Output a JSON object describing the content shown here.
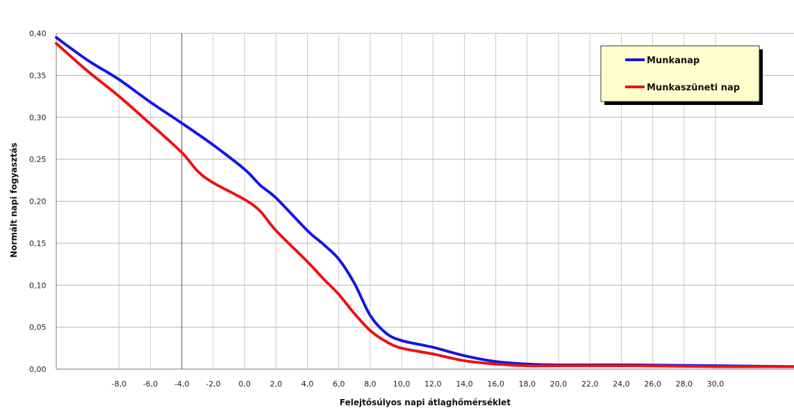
{
  "chart_data": {
    "type": "line",
    "title": "",
    "xlabel": "Felejtősúlyos napi átlaghőmérséklet",
    "ylabel": "Normált napi fogyasztás",
    "xlim": [
      -12.0,
      35.0
    ],
    "ylim": [
      0.0,
      0.4
    ],
    "x_ticks": [
      -8.0,
      -6.0,
      -4.0,
      -2.0,
      0.0,
      2.0,
      4.0,
      6.0,
      8.0,
      10.0,
      12.0,
      14.0,
      16.0,
      18.0,
      20.0,
      22.0,
      24.0,
      26.0,
      28.0,
      30.0
    ],
    "x_tick_labels": [
      "-8,0",
      "-6,0",
      "-4,0",
      "-2,0",
      "0,0",
      "2,0",
      "4,0",
      "6,0",
      "8,0",
      "10,0",
      "12,0",
      "14,0",
      "16,0",
      "18,0",
      "20,0",
      "22,0",
      "24,0",
      "26,0",
      "28,0",
      "30,0"
    ],
    "y_ticks": [
      0.0,
      0.05,
      0.1,
      0.15,
      0.2,
      0.25,
      0.3,
      0.35,
      0.4
    ],
    "y_tick_labels": [
      "0,00",
      "0,05",
      "0,10",
      "0,15",
      "0,20",
      "0,25",
      "0,30",
      "0,35",
      "0,40"
    ],
    "grid": true,
    "legend_position": "top-right",
    "series": [
      {
        "name": "Munkanap",
        "color": "#1414e6",
        "x": [
          -12.0,
          -10.0,
          -8.0,
          -6.0,
          -4.0,
          -2.0,
          0.0,
          1.0,
          2.0,
          4.0,
          5.0,
          6.0,
          7.0,
          8.0,
          9.0,
          10.0,
          12.0,
          14.0,
          16.0,
          18.0,
          20.0,
          25.0,
          30.0,
          35.0
        ],
        "y": [
          0.395,
          0.368,
          0.345,
          0.318,
          0.293,
          0.267,
          0.238,
          0.219,
          0.204,
          0.165,
          0.149,
          0.131,
          0.102,
          0.064,
          0.043,
          0.034,
          0.026,
          0.016,
          0.009,
          0.006,
          0.005,
          0.005,
          0.004,
          0.003
        ]
      },
      {
        "name": "Munkaszüneti nap",
        "color": "#ee1111",
        "x": [
          -12.0,
          -10.0,
          -8.0,
          -6.0,
          -4.0,
          -3.0,
          -2.0,
          0.0,
          1.0,
          2.0,
          4.0,
          5.0,
          6.0,
          7.0,
          8.0,
          9.0,
          10.0,
          12.0,
          14.0,
          16.0,
          18.0,
          20.0,
          25.0,
          30.0,
          35.0
        ],
        "y": [
          0.388,
          0.355,
          0.325,
          0.292,
          0.258,
          0.236,
          0.222,
          0.202,
          0.188,
          0.165,
          0.128,
          0.108,
          0.089,
          0.066,
          0.046,
          0.033,
          0.025,
          0.018,
          0.01,
          0.006,
          0.004,
          0.004,
          0.004,
          0.003,
          0.003
        ]
      }
    ]
  }
}
